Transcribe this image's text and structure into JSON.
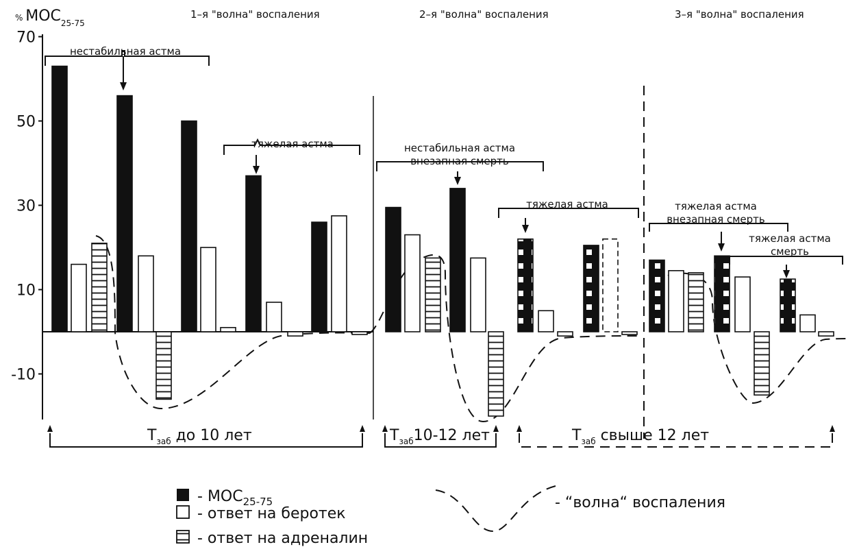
{
  "chart_data": {
    "type": "bar",
    "ylabel_prefix": "% ",
    "ylabel_main": "МОС",
    "ylabel_sub": "25-75",
    "ylim": [
      -22,
      72
    ],
    "yticks": [
      {
        "value": 70,
        "label": "70"
      },
      {
        "value": 50,
        "label": "50"
      },
      {
        "value": 30,
        "label": "30"
      },
      {
        "value": 10,
        "label": "10"
      },
      {
        "value": -10,
        "label": "-10"
      }
    ],
    "waves": [
      {
        "title": "1–я \"волна\" воспаления"
      },
      {
        "title": "2–я \"волна\" воспаления"
      },
      {
        "title": "3–я \"волна\" воспаления"
      }
    ],
    "bars": [
      {
        "series": "moc",
        "value": 63,
        "wave": 1
      },
      {
        "series": "berotek",
        "value": 16,
        "wave": 1
      },
      {
        "series": "adrenalin",
        "value": 21,
        "wave": 1
      },
      {
        "series": "moc",
        "value": 56,
        "wave": 1
      },
      {
        "series": "adrenalin",
        "value": -16,
        "wave": 1
      },
      {
        "series": "berotek",
        "value": 18,
        "wave": 1
      },
      {
        "series": "moc",
        "value": 50,
        "wave": 1
      },
      {
        "series": "berotek",
        "value": 20,
        "wave": 1
      },
      {
        "series": "berotek",
        "value": 1,
        "wave": 1
      },
      {
        "series": "moc",
        "value": 37,
        "wave": 1
      },
      {
        "series": "berotek",
        "value": 7,
        "wave": 1
      },
      {
        "series": "berotek",
        "value": -1,
        "wave": 1
      },
      {
        "series": "moc",
        "value": 26,
        "wave": 1
      },
      {
        "series": "berotek",
        "value": 27.5,
        "wave": 1
      },
      {
        "series": "berotek",
        "value": -0.5,
        "wave": 1
      },
      {
        "series": "moc",
        "value": 29.5,
        "wave": 2
      },
      {
        "series": "berotek",
        "value": 23,
        "wave": 2
      },
      {
        "series": "adrenalin",
        "value": 17.5,
        "wave": 2
      },
      {
        "series": "moc",
        "value": 34,
        "wave": 2
      },
      {
        "series": "berotek",
        "value": 17.5,
        "wave": 2
      },
      {
        "series": "adrenalin",
        "value": -20,
        "wave": 2
      },
      {
        "series": "moc",
        "value": 22,
        "wave": 2
      },
      {
        "series": "berotek",
        "value": 5,
        "wave": 2
      },
      {
        "series": "berotek",
        "value": -1,
        "wave": 2
      },
      {
        "series": "moc",
        "value": 20.5,
        "wave": 2
      },
      {
        "series": "berotek",
        "value": 22,
        "wave": 2
      },
      {
        "series": "berotek",
        "value": -0.5,
        "wave": 2
      },
      {
        "series": "moc",
        "value": 17,
        "wave": 3
      },
      {
        "series": "berotek",
        "value": 14.5,
        "wave": 3
      },
      {
        "series": "adrenalin",
        "value": 14,
        "wave": 3
      },
      {
        "series": "moc",
        "value": 18,
        "wave": 3
      },
      {
        "series": "berotek",
        "value": 13,
        "wave": 3
      },
      {
        "series": "adrenalin",
        "value": -15,
        "wave": 3
      },
      {
        "series": "moc",
        "value": 12.5,
        "wave": 3
      },
      {
        "series": "berotek",
        "value": 4,
        "wave": 3
      },
      {
        "series": "berotek",
        "value": -1,
        "wave": 3
      }
    ],
    "annotations": [
      {
        "lines": [
          "нестабильная астма"
        ]
      },
      {
        "lines": [
          "тяжелая астма"
        ]
      },
      {
        "lines": [
          "нестабильная астма",
          "внезапная смерть"
        ]
      },
      {
        "lines": [
          "тяжелая астма"
        ]
      },
      {
        "lines": [
          "тяжелая астма",
          "внезапная смерть"
        ]
      },
      {
        "lines": [
          "тяжелая астма",
          "смерть"
        ]
      }
    ],
    "periods": [
      {
        "T": "T",
        "sub": "заб",
        "text": " до 10 лет"
      },
      {
        "T": "T",
        "sub": "заб",
        "text": "10-12 лет"
      },
      {
        "T": "T",
        "sub": "заб",
        "text": " свыше 12 лет"
      }
    ],
    "legend": {
      "placement": "bottom",
      "moc_prefix": "- ",
      "moc_main": "МОС",
      "moc_sub": "25-75",
      "berotek": "- ответ на беротек",
      "adrenalin": "- ответ на адреналин",
      "wave": "- “волна“ воспаления"
    },
    "colors": {
      "ink": "#111111",
      "background": "#ffffff"
    }
  }
}
